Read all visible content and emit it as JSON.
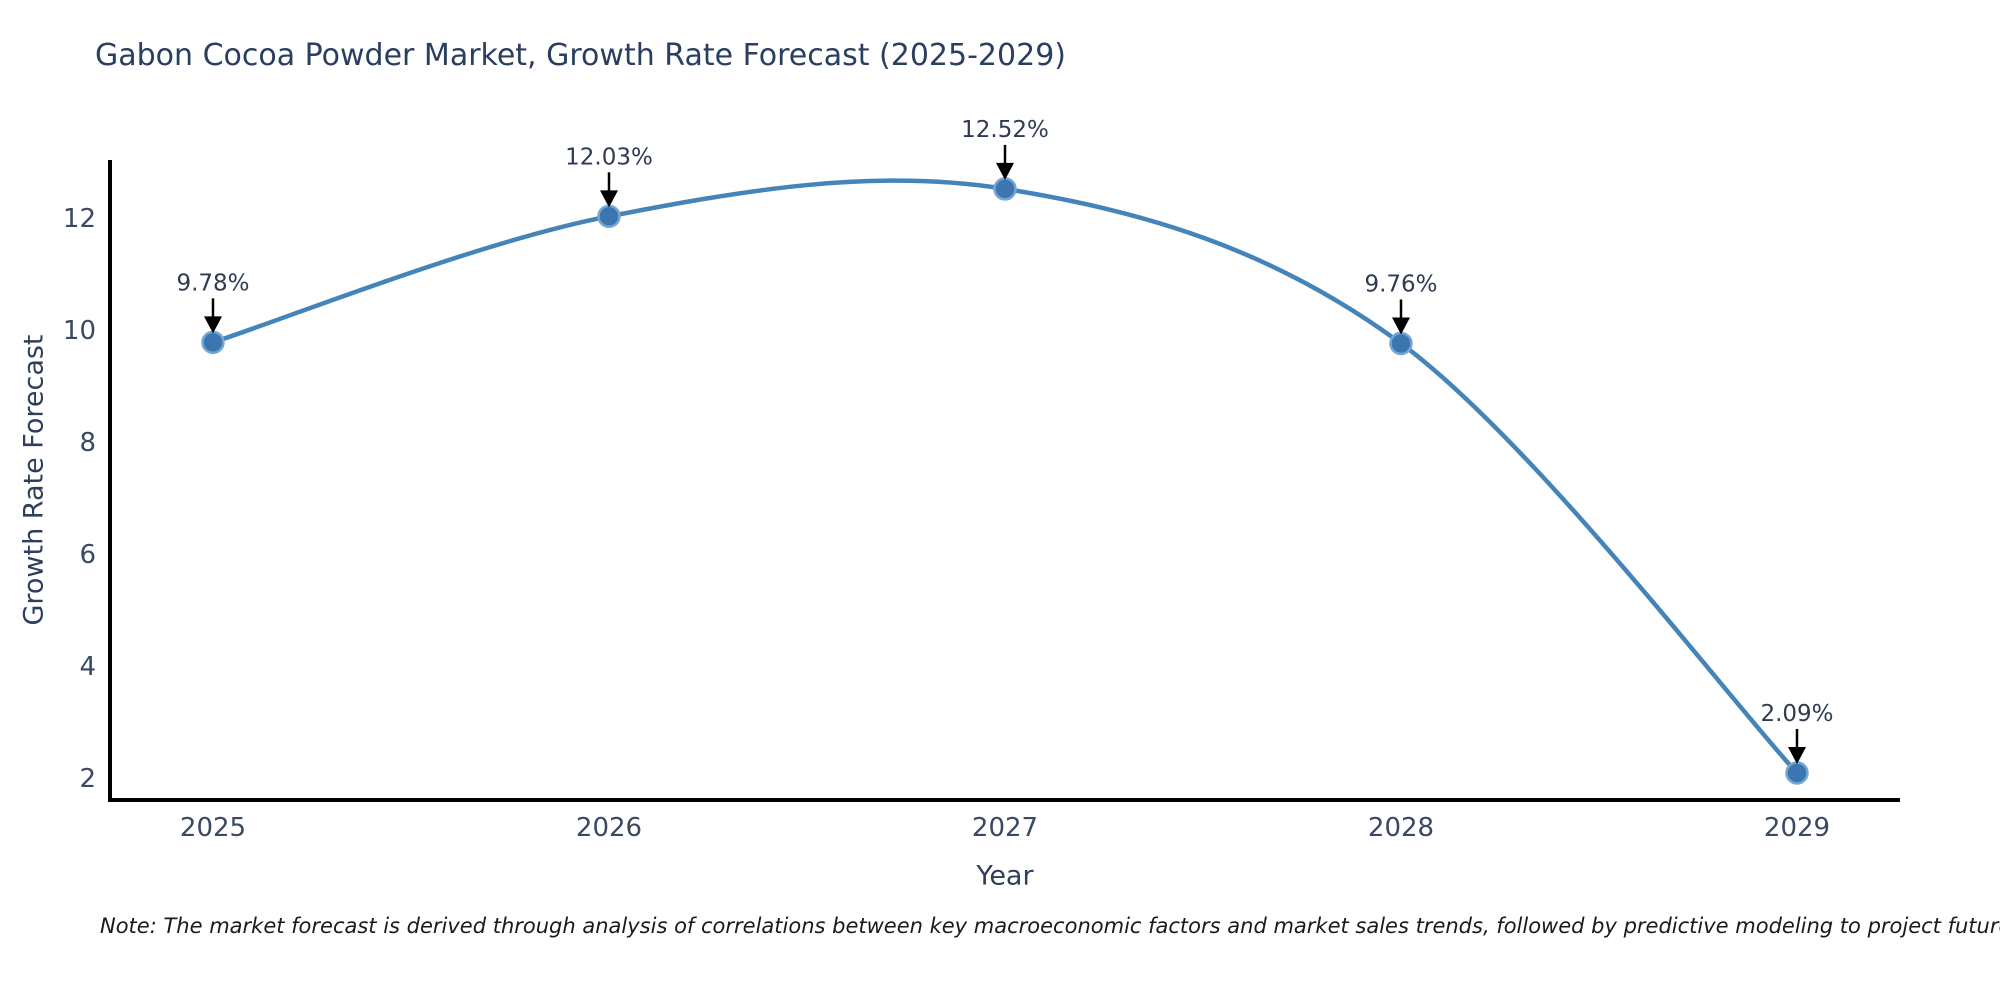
{
  "title": "Gabon Cocoa Powder Market, Growth Rate Forecast (2025-2029)",
  "note": "Note: The market forecast is derived through analysis of correlations between key macroeconomic factors and market sales trends, followed by predictive modeling to project future sales",
  "chart_data": {
    "type": "line",
    "title": "Gabon Cocoa Powder Market, Growth Rate Forecast (2025-2029)",
    "xlabel": "Year",
    "ylabel": "Growth Rate Forecast",
    "x": [
      2025,
      2026,
      2027,
      2028,
      2029
    ],
    "values": [
      9.78,
      12.03,
      12.52,
      9.76,
      2.09
    ],
    "point_labels": [
      "9.78%",
      "12.03%",
      "12.52%",
      "9.76%",
      "2.09%"
    ],
    "xticks": [
      "2025",
      "2026",
      "2027",
      "2028",
      "2029"
    ],
    "yticks": [
      2,
      4,
      6,
      8,
      10,
      12
    ],
    "ylim": [
      1.6,
      13.05
    ],
    "line_shape": "spline",
    "grid": false,
    "legend": "none",
    "annotation_style": "value labels with downward black arrows onto markers",
    "colors": {
      "line": "#4584b8",
      "marker_fill": "#3b76b0",
      "marker_edge": "#76a7d3",
      "axis": "#000000",
      "title_text": "#2a3f5f",
      "tick_text": "#3a4862",
      "annotation_text": "#2f3b52",
      "arrow": "#000000"
    }
  }
}
